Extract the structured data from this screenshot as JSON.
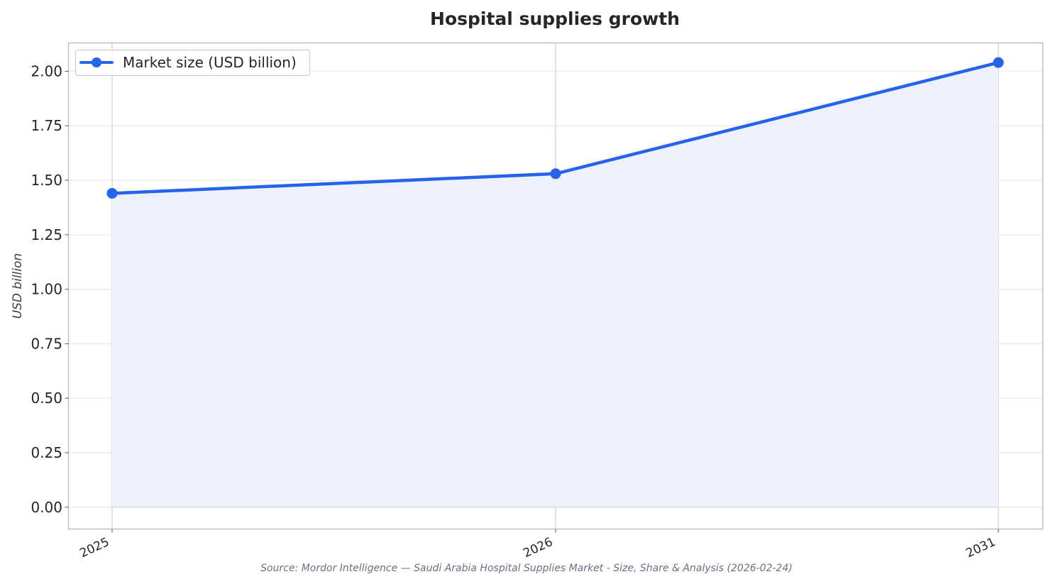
{
  "chart_data": {
    "type": "line",
    "title": "Hospital supplies growth",
    "xlabel": "",
    "ylabel": "USD billion",
    "categories": [
      "2025",
      "2026",
      "2031"
    ],
    "series": [
      {
        "name": "Market size (USD billion)",
        "values": [
          1.44,
          1.53,
          2.04
        ]
      }
    ],
    "ylim": [
      -0.1,
      2.13
    ],
    "yticks": [
      "0.00",
      "0.25",
      "0.50",
      "0.75",
      "1.00",
      "1.25",
      "1.50",
      "1.75",
      "2.00"
    ],
    "area_fill": true,
    "grid": true,
    "legend_position": "top-left",
    "colors": {
      "line": "#2563eb",
      "fill": "#ecf1fc",
      "grid": "#e8e8ec",
      "frame": "#bfbfbf"
    }
  },
  "source": "Source: Mordor Intelligence — Saudi Arabia Hospital Supplies Market - Size, Share & Analysis (2026-02-24)"
}
